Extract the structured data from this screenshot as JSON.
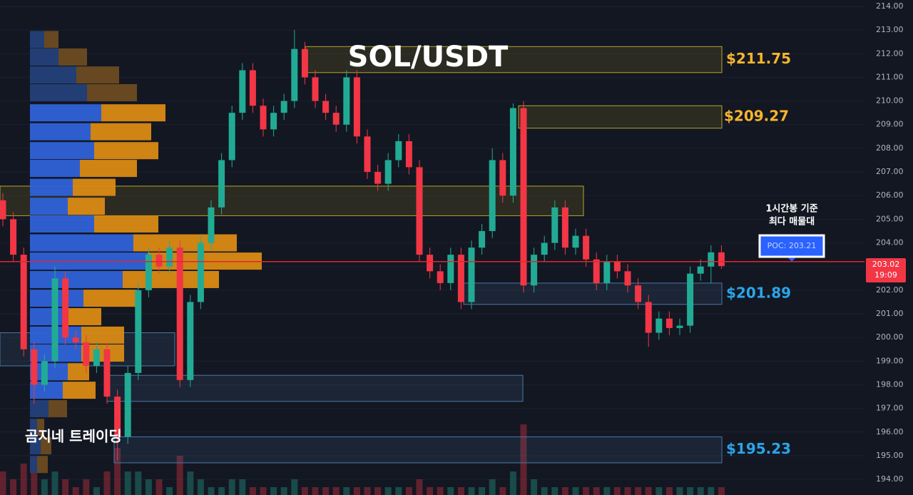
{
  "chart_data": {
    "type": "candlestick",
    "title": "SOL/USDT",
    "watermark": "곰지네 트레이딩",
    "colors": {
      "up": "#22ab94",
      "down": "#f23645",
      "background": "#131722"
    },
    "open": [
      205.8,
      205.0,
      203.5,
      199.5,
      198.0,
      199.0,
      202.5,
      200.0,
      199.8,
      198.8,
      199.5,
      197.5,
      195.8,
      198.5,
      202.0,
      203.5,
      203.0,
      203.8,
      198.2,
      201.5,
      204.0,
      205.5,
      207.5,
      209.5,
      211.3,
      209.8,
      208.8,
      209.5,
      210.0,
      212.2,
      211.0,
      210.0,
      209.5,
      209.0,
      211.0,
      208.5,
      207.0,
      206.5,
      207.5,
      208.3,
      207.2,
      203.5,
      202.8,
      202.3,
      203.5,
      201.5,
      203.8,
      204.5,
      207.5,
      206.0,
      209.7,
      202.2,
      203.5,
      204.0,
      205.5,
      203.8,
      204.3,
      203.3,
      202.3,
      203.2,
      202.8,
      202.2,
      201.5,
      200.2,
      200.8,
      200.4,
      200.5,
      202.7,
      203.0,
      203.6
    ],
    "high": [
      206.1,
      205.3,
      203.8,
      199.8,
      199.3,
      203.0,
      202.8,
      200.3,
      200.1,
      199.8,
      199.8,
      197.8,
      198.8,
      202.3,
      203.8,
      203.8,
      204.1,
      204.1,
      201.8,
      204.3,
      205.8,
      207.8,
      209.8,
      211.6,
      211.6,
      210.1,
      209.8,
      210.3,
      213.0,
      212.5,
      211.3,
      210.3,
      209.8,
      211.3,
      211.3,
      208.8,
      207.3,
      207.8,
      208.6,
      208.6,
      207.5,
      203.8,
      203.1,
      203.8,
      203.8,
      204.1,
      204.8,
      208.0,
      207.8,
      209.9,
      210.0,
      203.8,
      204.3,
      205.8,
      205.8,
      204.6,
      204.6,
      203.6,
      203.5,
      203.5,
      203.1,
      202.5,
      201.8,
      201.1,
      201.1,
      200.8,
      203.0,
      203.3,
      203.9,
      203.9
    ],
    "low": [
      204.7,
      203.2,
      199.2,
      197.2,
      197.7,
      198.7,
      199.7,
      199.5,
      198.5,
      198.5,
      197.2,
      194.8,
      195.5,
      198.2,
      201.7,
      202.7,
      202.7,
      197.9,
      197.9,
      201.2,
      203.7,
      205.2,
      207.2,
      209.2,
      209.5,
      208.5,
      208.5,
      209.2,
      209.7,
      210.7,
      209.7,
      209.2,
      208.7,
      208.7,
      208.2,
      206.7,
      206.2,
      206.2,
      207.2,
      206.9,
      203.2,
      202.5,
      202.0,
      202.0,
      201.2,
      201.2,
      203.5,
      204.2,
      205.7,
      205.7,
      201.9,
      201.9,
      203.2,
      203.7,
      203.5,
      203.5,
      203.0,
      202.0,
      202.0,
      202.5,
      201.9,
      201.2,
      199.6,
      199.9,
      200.1,
      200.1,
      200.2,
      202.4,
      202.3,
      202.9
    ],
    "close": [
      205.0,
      203.5,
      199.5,
      198.0,
      199.0,
      202.5,
      200.0,
      199.8,
      198.8,
      199.5,
      197.5,
      195.8,
      198.5,
      202.0,
      203.5,
      203.0,
      203.8,
      198.2,
      201.5,
      204.0,
      205.5,
      207.5,
      209.5,
      211.3,
      209.8,
      208.8,
      209.5,
      210.0,
      212.2,
      211.0,
      210.0,
      209.5,
      209.0,
      211.0,
      208.5,
      207.0,
      206.5,
      207.5,
      208.3,
      207.2,
      203.5,
      202.8,
      202.3,
      203.5,
      201.5,
      203.8,
      204.5,
      207.5,
      206.0,
      209.7,
      202.2,
      203.5,
      204.0,
      205.5,
      203.8,
      204.3,
      203.3,
      202.3,
      203.2,
      202.8,
      202.2,
      201.5,
      200.2,
      200.8,
      200.4,
      200.5,
      202.7,
      203.0,
      203.6,
      203.02
    ],
    "volume": [
      3,
      2,
      4,
      3,
      2,
      3,
      2,
      1,
      2,
      1,
      3,
      6,
      3,
      3,
      2,
      2,
      1,
      5,
      3,
      2,
      1,
      1,
      2,
      2,
      1,
      1,
      1,
      1,
      2,
      1,
      1,
      1,
      1,
      1,
      1,
      1,
      1,
      1,
      1,
      1,
      2,
      1,
      1,
      1,
      1,
      1,
      1,
      2,
      1,
      3,
      9,
      2,
      1,
      1,
      1,
      1,
      1,
      1,
      1,
      1,
      1,
      1,
      1,
      1,
      1,
      1,
      1,
      1,
      1,
      1
    ],
    "volume_profile": {
      "levels": [
        212.6,
        211.86,
        211.1,
        210.35,
        209.5,
        208.7,
        207.9,
        207.15,
        206.35,
        205.55,
        204.8,
        204.0,
        203.23,
        202.45,
        201.66,
        200.88,
        200.1,
        199.34,
        198.55,
        197.77,
        196.99,
        196.2,
        195.42,
        194.63
      ],
      "buy": [
        2,
        4,
        6.5,
        8,
        10,
        8.5,
        9,
        7,
        6,
        5.3,
        9,
        14.5,
        16.5,
        13,
        7.5,
        5.2,
        7.2,
        7.2,
        5.3,
        4.6,
        2.6,
        1,
        1.5,
        1
      ],
      "sell": [
        2,
        4,
        6,
        7,
        9,
        8.5,
        9,
        8,
        6,
        5.2,
        9,
        14.5,
        16,
        13.5,
        7.5,
        4.8,
        6,
        6,
        3,
        4.6,
        2.6,
        1,
        1.5,
        1.5
      ]
    },
    "zones": [
      {
        "high": 212.3,
        "low": 211.2,
        "color": "#b8a42a",
        "label": "$211.75"
      },
      {
        "high": 209.8,
        "low": 208.85,
        "color": "#b8a42a",
        "label": "$209.27"
      },
      {
        "high": 206.4,
        "low": 205.15,
        "color": "#b8a42a"
      },
      {
        "high": 202.3,
        "low": 201.4,
        "color": "#4a78a8",
        "label": "$201.89"
      },
      {
        "high": 198.4,
        "low": 197.3,
        "color": "#4a78a8"
      },
      {
        "high": 195.8,
        "low": 194.7,
        "color": "#4a78a8",
        "label": "$195.23"
      },
      {
        "high": 200.2,
        "low": 198.8,
        "color": "#4a78a8"
      }
    ],
    "poc": 203.21,
    "poc_label": "POC: 203.21",
    "poc_note": [
      "1시간봉 기준",
      "최다 매물대"
    ],
    "last_price": 203.02,
    "countdown": "19:09",
    "ylim": [
      193.34,
      214.27
    ],
    "yticks": [
      {
        "value": 194,
        "label": "194.00"
      },
      {
        "value": 195,
        "label": "195.00"
      },
      {
        "value": 196,
        "label": "196.00"
      },
      {
        "value": 197,
        "label": "197.00"
      },
      {
        "value": 198,
        "label": "198.00"
      },
      {
        "value": 199,
        "label": "199.00"
      },
      {
        "value": 200,
        "label": "200.00"
      },
      {
        "value": 201,
        "label": "201.00"
      },
      {
        "value": 202,
        "label": "202.00"
      },
      {
        "value": 203,
        "label": "203.00"
      },
      {
        "value": 204,
        "label": "204.00"
      },
      {
        "value": 205,
        "label": "205.00"
      },
      {
        "value": 206,
        "label": "206.00"
      },
      {
        "value": 207,
        "label": "207.00"
      },
      {
        "value": 208,
        "label": "208.00"
      },
      {
        "value": 209,
        "label": "209.00"
      },
      {
        "value": 210,
        "label": "210.00"
      },
      {
        "value": 211,
        "label": "211.00"
      },
      {
        "value": 212,
        "label": "212.00"
      },
      {
        "value": 213,
        "label": "213.00"
      },
      {
        "value": 214,
        "label": "214.00"
      }
    ],
    "grid": true
  }
}
